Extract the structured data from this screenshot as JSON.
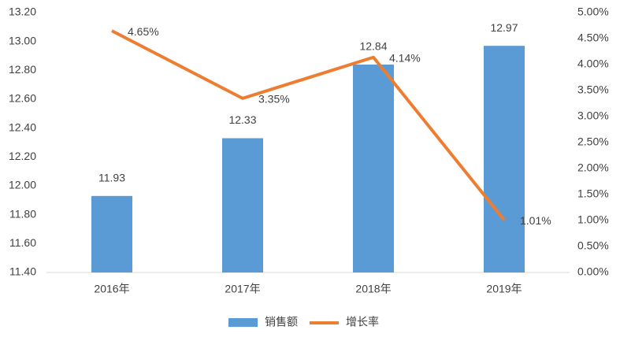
{
  "chart_data": {
    "type": "bar-line",
    "categories": [
      "2016年",
      "2017年",
      "2018年",
      "2019年"
    ],
    "series": [
      {
        "name": "销售额",
        "type": "bar",
        "color": "#5b9bd5",
        "values": [
          11.93,
          12.33,
          12.84,
          12.97
        ]
      },
      {
        "name": "增长率",
        "type": "line",
        "axis": "y2",
        "color": "#ed7d31",
        "values": [
          4.65,
          3.35,
          4.14,
          1.01
        ],
        "value_labels": [
          "4.65%",
          "3.35%",
          "4.14%",
          "1.01%"
        ]
      }
    ],
    "ylim": [
      11.4,
      13.2
    ],
    "yticks": [
      {
        "value": 11.4,
        "label": "11.40"
      },
      {
        "value": 11.6,
        "label": "11.60"
      },
      {
        "value": 11.8,
        "label": "11.80"
      },
      {
        "value": 12,
        "label": "12.00"
      },
      {
        "value": 12.2,
        "label": "12.20"
      },
      {
        "value": 12.4,
        "label": "12.40"
      },
      {
        "value": 12.6,
        "label": "12.60"
      },
      {
        "value": 12.8,
        "label": "12.80"
      },
      {
        "value": 13,
        "label": "13.00"
      },
      {
        "value": 13.2,
        "label": "13.20"
      }
    ],
    "y2lim": [
      0,
      5
    ],
    "y2ticks": [
      {
        "value": 0,
        "label": "0.00%"
      },
      {
        "value": 0.5,
        "label": "0.50%"
      },
      {
        "value": 1,
        "label": "1.00%"
      },
      {
        "value": 1.5,
        "label": "1.50%"
      },
      {
        "value": 2,
        "label": "2.00%"
      },
      {
        "value": 2.5,
        "label": "2.50%"
      },
      {
        "value": 3,
        "label": "3.00%"
      },
      {
        "value": 3.5,
        "label": "3.50%"
      },
      {
        "value": 4,
        "label": "4.00%"
      },
      {
        "value": 4.5,
        "label": "4.50%"
      },
      {
        "value": 5,
        "label": "5.00%"
      }
    ],
    "legend": "bottom"
  }
}
